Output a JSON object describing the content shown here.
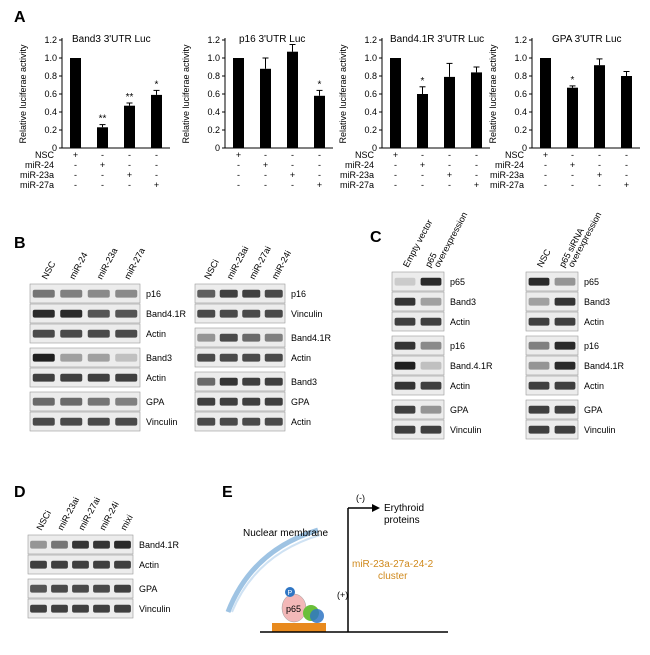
{
  "panel_labels": {
    "a": "A",
    "b": "B",
    "c": "C",
    "d": "D",
    "e": "E"
  },
  "chart_data": [
    {
      "type": "bar",
      "title": "Band3 3'UTR Luc",
      "ylabel": "Relative luciferae activity",
      "ylim": [
        0,
        1.2
      ],
      "yticks": [
        "0",
        "0.2",
        "0.4",
        "0.6",
        "0.8",
        "1.0",
        "1.2"
      ],
      "categories": [
        "NSC",
        "miR-24",
        "miR-23a",
        "miR-27a"
      ],
      "values": [
        1.0,
        0.23,
        0.47,
        0.59
      ],
      "errors": [
        0,
        0.03,
        0.03,
        0.05
      ],
      "sig": [
        "",
        "**",
        "**",
        "*"
      ],
      "show_row_labels": true
    },
    {
      "type": "bar",
      "title": "p16 3'UTR Luc",
      "ylabel": "Relative luciferae activity",
      "ylim": [
        0,
        1.2
      ],
      "yticks": [
        "0",
        "0.2",
        "0.4",
        "0.6",
        "0.8",
        "1.0",
        "1.2"
      ],
      "categories": [
        "NSC",
        "miR-24",
        "miR-23a",
        "miR-27a"
      ],
      "values": [
        1.0,
        0.88,
        1.07,
        0.58
      ],
      "errors": [
        0,
        0.12,
        0.08,
        0.06
      ],
      "sig": [
        "",
        "",
        "",
        "*"
      ],
      "show_row_labels": false
    },
    {
      "type": "bar",
      "title": "Band4.1R 3'UTR Luc",
      "ylabel": "Relative luciferae activity",
      "ylim": [
        0,
        1.2
      ],
      "yticks": [
        "0",
        "0.2",
        "0.4",
        "0.6",
        "0.8",
        "1.0",
        "1.2"
      ],
      "categories": [
        "NSC",
        "miR-24",
        "miR-23a",
        "miR-27a"
      ],
      "values": [
        1.0,
        0.6,
        0.79,
        0.84
      ],
      "errors": [
        0,
        0.08,
        0.15,
        0.06
      ],
      "sig": [
        "",
        "*",
        "",
        ""
      ],
      "show_row_labels": true
    },
    {
      "type": "bar",
      "title": "GPA 3'UTR Luc",
      "ylabel": "Relative luciferae activity",
      "ylim": [
        0,
        1.2
      ],
      "yticks": [
        "0",
        "0.2",
        "0.4",
        "0.6",
        "0.8",
        "1.0",
        "1.2"
      ],
      "categories": [
        "NSC",
        "miR-24",
        "miR-23a",
        "miR-27a"
      ],
      "values": [
        1.0,
        0.67,
        0.92,
        0.8
      ],
      "errors": [
        0,
        0.02,
        0.07,
        0.05
      ],
      "sig": [
        "",
        "*",
        "",
        ""
      ],
      "show_row_labels": true
    }
  ],
  "condition_matrix": {
    "rows": [
      "NSC",
      "miR-24",
      "miR-23a",
      "miR-27a"
    ],
    "signs": [
      [
        "+",
        "-",
        "-",
        "-"
      ],
      [
        "-",
        "+",
        "-",
        "-"
      ],
      [
        "-",
        "-",
        "+",
        "-"
      ],
      [
        "-",
        "-",
        "-",
        "+"
      ]
    ]
  },
  "blot_b1": {
    "lanes": [
      "NSC",
      "miR-24",
      "miR-23a",
      "miR-27a"
    ],
    "bands": [
      [
        "p16",
        [
          0.55,
          0.5,
          0.45,
          0.45
        ]
      ],
      [
        "Band4.1R",
        [
          0.9,
          0.9,
          0.7,
          0.7
        ]
      ],
      [
        "Actin",
        [
          0.75,
          0.75,
          0.75,
          0.75
        ]
      ],
      [
        "Band3",
        [
          0.95,
          0.35,
          0.35,
          0.2
        ]
      ],
      [
        "Actin",
        [
          0.8,
          0.8,
          0.8,
          0.8
        ]
      ],
      [
        "GPA",
        [
          0.6,
          0.6,
          0.55,
          0.5
        ]
      ],
      [
        "Vinculin",
        [
          0.75,
          0.75,
          0.75,
          0.75
        ]
      ]
    ]
  },
  "blot_b2": {
    "lanes": [
      "NSCi",
      "miR-23ai",
      "miR-27ai",
      "miR-24i"
    ],
    "bands": [
      [
        "p16",
        [
          0.65,
          0.8,
          0.8,
          0.75
        ]
      ],
      [
        "Vinculin",
        [
          0.75,
          0.75,
          0.75,
          0.75
        ]
      ],
      [
        "Band4.1R",
        [
          0.4,
          0.75,
          0.6,
          0.5
        ]
      ],
      [
        "Actin",
        [
          0.75,
          0.75,
          0.75,
          0.75
        ]
      ],
      [
        "Band3",
        [
          0.6,
          0.85,
          0.8,
          0.8
        ]
      ],
      [
        "GPA",
        [
          0.8,
          0.8,
          0.8,
          0.8
        ]
      ],
      [
        "Actin",
        [
          0.75,
          0.75,
          0.75,
          0.75
        ]
      ]
    ]
  },
  "blot_c1": {
    "lanes": [
      "Empty vector",
      "p65 overexpression"
    ],
    "bands": [
      [
        "p65",
        [
          0.15,
          0.9
        ]
      ],
      [
        "Band3",
        [
          0.85,
          0.35
        ]
      ],
      [
        "Actin",
        [
          0.8,
          0.8
        ]
      ],
      [
        "p16",
        [
          0.85,
          0.45
        ]
      ],
      [
        "Band.4.1R",
        [
          0.95,
          0.2
        ]
      ],
      [
        "Actin",
        [
          0.85,
          0.8
        ]
      ],
      [
        "GPA",
        [
          0.8,
          0.4
        ]
      ],
      [
        "Vinculin",
        [
          0.8,
          0.8
        ]
      ]
    ]
  },
  "blot_c2": {
    "lanes": [
      "NSC",
      "p65 siRNA overexpression"
    ],
    "bands": [
      [
        "p65",
        [
          0.9,
          0.4
        ]
      ],
      [
        "Band3",
        [
          0.35,
          0.85
        ]
      ],
      [
        "Actin",
        [
          0.8,
          0.8
        ]
      ],
      [
        "p16",
        [
          0.5,
          0.9
        ]
      ],
      [
        "Band4.1R",
        [
          0.4,
          0.9
        ]
      ],
      [
        "Actin",
        [
          0.8,
          0.8
        ]
      ],
      [
        "GPA",
        [
          0.8,
          0.8
        ]
      ],
      [
        "Vinculin",
        [
          0.8,
          0.8
        ]
      ]
    ]
  },
  "blot_d": {
    "lanes": [
      "NSCi",
      "miR-23ai",
      "miR-27ai",
      "miR-24i",
      "mixi"
    ],
    "bands": [
      [
        "Band4.1R",
        [
          0.4,
          0.55,
          0.85,
          0.85,
          0.9
        ]
      ],
      [
        "Actin",
        [
          0.8,
          0.8,
          0.8,
          0.8,
          0.8
        ]
      ],
      [
        "GPA",
        [
          0.7,
          0.75,
          0.75,
          0.75,
          0.8
        ]
      ],
      [
        "Vinculin",
        [
          0.8,
          0.8,
          0.8,
          0.8,
          0.8
        ]
      ]
    ]
  },
  "diagram": {
    "nuclear_membrane": "Nuclear membrane",
    "cluster_line1": "miR-23a-27a-24-2",
    "cluster_line2": "cluster",
    "neg": "(-)",
    "pos": "(+)",
    "target_line1": "Erythroid",
    "target_line2": "proteins",
    "p65": "p65",
    "p": "P",
    "colors": {
      "cluster": "#d08a1e",
      "membrane": "#9ec3e3",
      "p65": "#f3b8b8",
      "green": "#6abf3a",
      "blue": "#2f76c4",
      "promoter": "#e88a1e"
    }
  }
}
